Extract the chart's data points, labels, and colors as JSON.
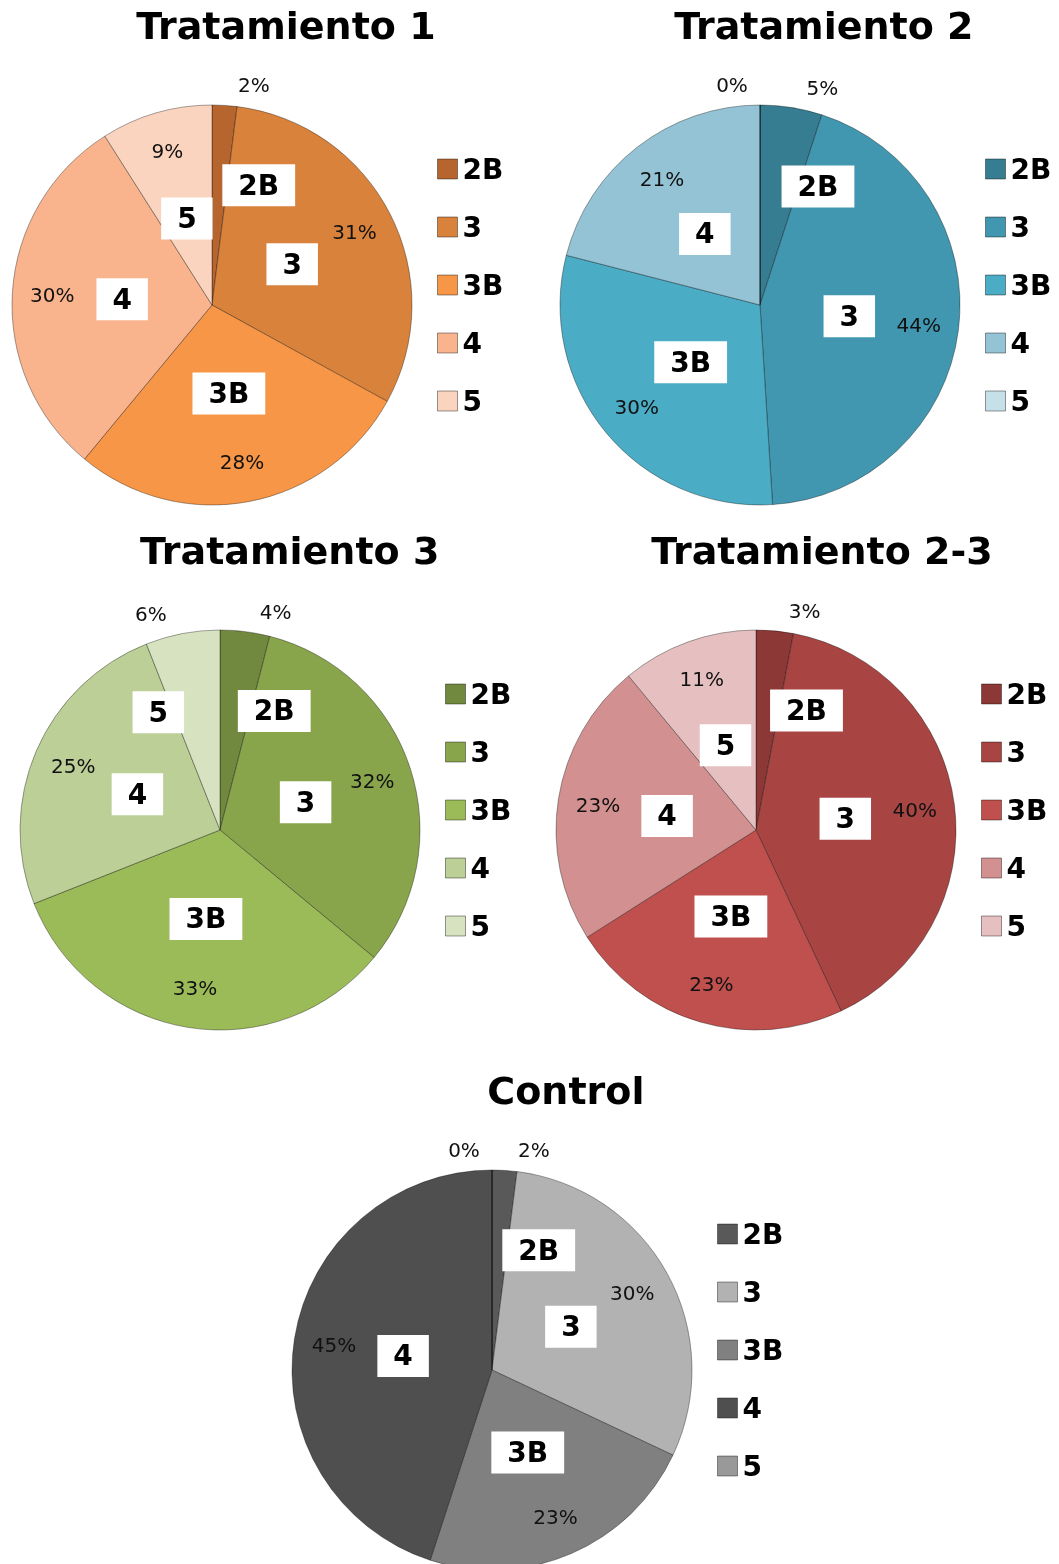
{
  "chart_data": [
    {
      "type": "pie",
      "title": "Tratamiento 1",
      "categories": [
        "2B",
        "3",
        "3B",
        "4",
        "5"
      ],
      "values": [
        2,
        31,
        28,
        30,
        9
      ],
      "value_labels": [
        "2%",
        "31%",
        "28%",
        "30%",
        "9%"
      ],
      "colors": [
        "#b7652f",
        "#d9823b",
        "#f79646",
        "#f9b48e",
        "#fbd4bf"
      ],
      "legend": "right"
    },
    {
      "type": "pie",
      "title": "Tratamiento 2",
      "categories": [
        "2B",
        "3",
        "3B",
        "4",
        "5"
      ],
      "values": [
        5,
        44,
        30,
        21,
        0
      ],
      "value_labels": [
        "5%",
        "44%",
        "30%",
        "21%",
        "0%"
      ],
      "colors": [
        "#367d91",
        "#4197b0",
        "#4bacc6",
        "#93c3d4",
        "#c6e0e9"
      ],
      "legend": "right"
    },
    {
      "type": "pie",
      "title": "Tratamiento 3",
      "categories": [
        "2B",
        "3",
        "3B",
        "4",
        "5"
      ],
      "values": [
        4,
        32,
        33,
        25,
        6
      ],
      "value_labels": [
        "4%",
        "32%",
        "33%",
        "25%",
        "6%"
      ],
      "colors": [
        "#71893f",
        "#88a54c",
        "#9bbb59",
        "#bbcf96",
        "#d7e3c0"
      ],
      "legend": "right"
    },
    {
      "type": "pie",
      "title": "Tratamiento 2-3",
      "categories": [
        "2B",
        "3",
        "3B",
        "4",
        "5"
      ],
      "values": [
        3,
        40,
        23,
        23,
        11
      ],
      "value_labels": [
        "3%",
        "40%",
        "23%",
        "23%",
        "11%"
      ],
      "colors": [
        "#8c3836",
        "#a84543",
        "#c0504d",
        "#d29190",
        "#e6c0c0"
      ],
      "legend": "right"
    },
    {
      "type": "pie",
      "title": "Control",
      "categories": [
        "2B",
        "3",
        "3B",
        "4",
        "5"
      ],
      "values": [
        2,
        30,
        23,
        45,
        0
      ],
      "value_labels": [
        "2%",
        "30%",
        "23%",
        "45%",
        "0%"
      ],
      "colors": [
        "#595959",
        "#b2b2b2",
        "#808080",
        "#4f4f4f",
        "#999999"
      ],
      "legend": "right"
    }
  ]
}
